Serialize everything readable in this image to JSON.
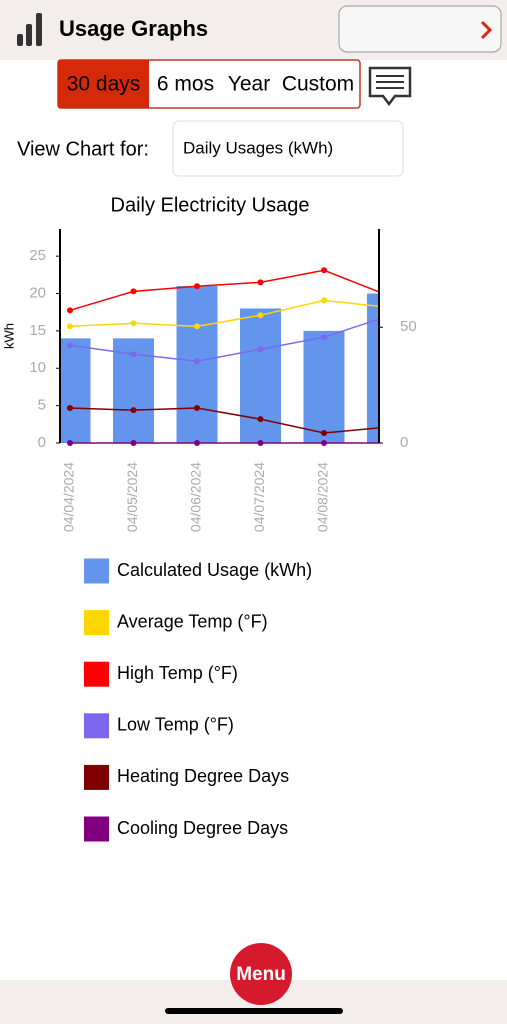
{
  "header": {
    "title": "Usage Graphs"
  },
  "tabs": {
    "items": [
      "30 days",
      "6 mos",
      "Year",
      "Custom"
    ],
    "active": 0
  },
  "view": {
    "label": "View Chart for:",
    "selected": "Daily Usages (kWh)"
  },
  "menu": "Menu",
  "chart_data": {
    "type": "bar",
    "title": "Daily Electricity Usage",
    "y_label": "kWh",
    "categories": [
      "04/04/2024",
      "04/05/2024",
      "04/06/2024",
      "04/07/2024",
      "04/08/2024",
      null
    ],
    "ylim": [
      0,
      28.5
    ],
    "yticks": [
      0,
      5,
      10,
      15,
      20,
      25
    ],
    "y2lim": [
      0,
      92
    ],
    "y2ticks": [
      0,
      50
    ],
    "series": [
      {
        "name": "Calculated Usage (kWh)",
        "type": "bar",
        "color": "#6495ed",
        "values": [
          14,
          14,
          21,
          18,
          15,
          20
        ]
      },
      {
        "name": "Average Temp (°F)",
        "type": "line",
        "axis": "y2",
        "color": "#ffd700",
        "values": [
          50.4,
          51.7,
          50.4,
          55.2,
          61.6,
          58.6
        ]
      },
      {
        "name": "High Temp (°F)",
        "type": "line",
        "axis": "y2",
        "color": "#ff0000",
        "values": [
          57.3,
          65.5,
          67.7,
          69.4,
          74.6,
          63.8
        ]
      },
      {
        "name": "Low Temp (°F)",
        "type": "line",
        "axis": "y2",
        "color": "#7b68ee",
        "values": [
          42.2,
          38.4,
          35.3,
          40.5,
          45.7,
          54.7
        ]
      },
      {
        "name": "Heating Degree Days",
        "type": "line",
        "axis": "y2",
        "color": "#800000",
        "values": [
          15.1,
          14.2,
          15.1,
          10.3,
          4.3,
          6.9
        ]
      },
      {
        "name": "Cooling Degree Days",
        "type": "line",
        "axis": "y2",
        "color": "#800080",
        "values": [
          0,
          0,
          0,
          0,
          0,
          0
        ]
      }
    ]
  }
}
